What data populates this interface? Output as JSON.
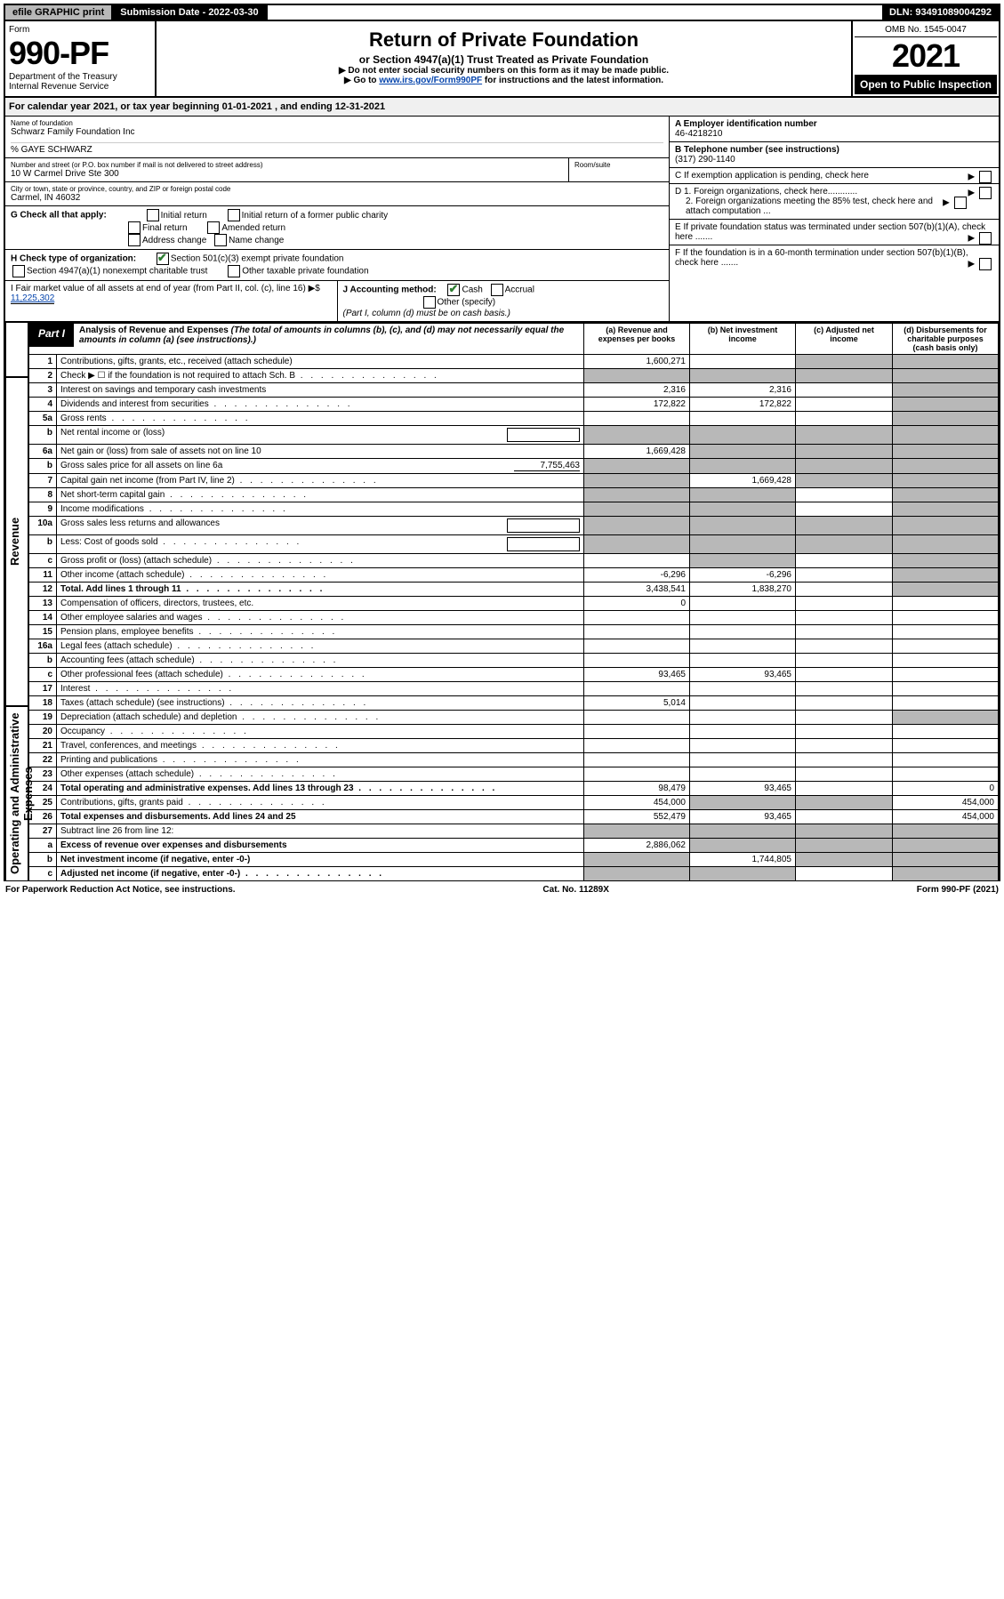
{
  "topbar": {
    "efile": "efile GRAPHIC print",
    "subdate": "Submission Date - 2022-03-30",
    "dln": "DLN: 93491089004292"
  },
  "header": {
    "form_label": "Form",
    "form_no": "990-PF",
    "dept": "Department of the Treasury",
    "irs": "Internal Revenue Service",
    "title": "Return of Private Foundation",
    "sub": "or Section 4947(a)(1) Trust Treated as Private Foundation",
    "note1": "▶ Do not enter social security numbers on this form as it may be made public.",
    "note2_pre": "▶ Go to ",
    "note2_link": "www.irs.gov/Form990PF",
    "note2_post": " for instructions and the latest information.",
    "omb": "OMB No. 1545-0047",
    "year": "2021",
    "open": "Open to Public Inspection"
  },
  "cal": "For calendar year 2021, or tax year beginning 01-01-2021              , and ending 12-31-2021",
  "info": {
    "name_label": "Name of foundation",
    "name": "Schwarz Family Foundation Inc",
    "care_of": "% GAYE SCHWARZ",
    "addr_label": "Number and street (or P.O. box number if mail is not delivered to street address)",
    "addr": "10 W Carmel Drive Ste 300",
    "room_label": "Room/suite",
    "city_label": "City or town, state or province, country, and ZIP or foreign postal code",
    "city": "Carmel, IN  46032",
    "a_label": "A Employer identification number",
    "a_val": "46-4218210",
    "b_label": "B Telephone number (see instructions)",
    "b_val": "(317) 290-1140",
    "c_label": "C If exemption application is pending, check here",
    "d1": "D 1. Foreign organizations, check here............",
    "d2": "2. Foreign organizations meeting the 85% test, check here and attach computation ...",
    "e": "E  If private foundation status was terminated under section 507(b)(1)(A), check here .......",
    "f": "F  If the foundation is in a 60-month termination under section 507(b)(1)(B), check here .......",
    "g_label": "G Check all that apply:",
    "g_opts": [
      "Initial return",
      "Initial return of a former public charity",
      "Final return",
      "Amended return",
      "Address change",
      "Name change"
    ],
    "h_label": "H Check type of organization:",
    "h_opts": [
      "Section 501(c)(3) exempt private foundation",
      "Section 4947(a)(1) nonexempt charitable trust",
      "Other taxable private foundation"
    ],
    "i_label": "I Fair market value of all assets at end of year (from Part II, col. (c), line 16) ▶$",
    "i_val": "11,225,302",
    "j_label": "J Accounting method:",
    "j_opts": [
      "Cash",
      "Accrual",
      "Other (specify)"
    ],
    "j_note": "(Part I, column (d) must be on cash basis.)"
  },
  "part1": {
    "tag": "Part I",
    "title": "Analysis of Revenue and Expenses",
    "title_note": "(The total of amounts in columns (b), (c), and (d) may not necessarily equal the amounts in column (a) (see instructions).)",
    "cols": {
      "a": "(a) Revenue and expenses per books",
      "b": "(b) Net investment income",
      "c": "(c) Adjusted net income",
      "d": "(d) Disbursements for charitable purposes (cash basis only)"
    },
    "side_revenue": "Revenue",
    "side_expenses": "Operating and Administrative Expenses",
    "rows": [
      {
        "n": "1",
        "desc": "Contributions, gifts, grants, etc., received (attach schedule)",
        "a": "1,600,271",
        "b": "",
        "c": "",
        "d": "",
        "shade_b": false,
        "shade_c": true,
        "shade_d": true
      },
      {
        "n": "2",
        "desc": "Check ▶ ☐ if the foundation is not required to attach Sch. B",
        "a": "",
        "b": "",
        "c": "",
        "d": "",
        "shade_a": true,
        "shade_b": true,
        "shade_c": true,
        "shade_d": true,
        "dot": true
      },
      {
        "n": "3",
        "desc": "Interest on savings and temporary cash investments",
        "a": "2,316",
        "b": "2,316",
        "c": "",
        "d": "",
        "shade_d": true
      },
      {
        "n": "4",
        "desc": "Dividends and interest from securities",
        "a": "172,822",
        "b": "172,822",
        "c": "",
        "d": "",
        "shade_d": true,
        "dot": true
      },
      {
        "n": "5a",
        "desc": "Gross rents",
        "a": "",
        "b": "",
        "c": "",
        "d": "",
        "shade_d": true,
        "dot": true
      },
      {
        "n": "b",
        "desc": "Net rental income or (loss)",
        "a": "",
        "b": "",
        "c": "",
        "d": "",
        "shade_a": true,
        "shade_b": true,
        "shade_c": true,
        "shade_d": true,
        "inline": true
      },
      {
        "n": "6a",
        "desc": "Net gain or (loss) from sale of assets not on line 10",
        "a": "1,669,428",
        "b": "",
        "c": "",
        "d": "",
        "shade_b": true,
        "shade_c": true,
        "shade_d": true
      },
      {
        "n": "b",
        "desc": "Gross sales price for all assets on line 6a",
        "inline_val": "7,755,463",
        "a": "",
        "b": "",
        "c": "",
        "d": "",
        "shade_a": true,
        "shade_b": true,
        "shade_c": true,
        "shade_d": true
      },
      {
        "n": "7",
        "desc": "Capital gain net income (from Part IV, line 2)",
        "a": "",
        "b": "1,669,428",
        "c": "",
        "d": "",
        "shade_a": true,
        "shade_c": true,
        "shade_d": true,
        "dot": true
      },
      {
        "n": "8",
        "desc": "Net short-term capital gain",
        "a": "",
        "b": "",
        "c": "",
        "d": "",
        "shade_a": true,
        "shade_b": true,
        "shade_d": true,
        "dot": true
      },
      {
        "n": "9",
        "desc": "Income modifications",
        "a": "",
        "b": "",
        "c": "",
        "d": "",
        "shade_a": true,
        "shade_b": true,
        "shade_d": true,
        "dot": true
      },
      {
        "n": "10a",
        "desc": "Gross sales less returns and allowances",
        "a": "",
        "b": "",
        "c": "",
        "d": "",
        "shade_a": true,
        "shade_b": true,
        "shade_c": true,
        "shade_d": true,
        "inline": true
      },
      {
        "n": "b",
        "desc": "Less: Cost of goods sold",
        "a": "",
        "b": "",
        "c": "",
        "d": "",
        "shade_a": true,
        "shade_b": true,
        "shade_c": true,
        "shade_d": true,
        "inline": true,
        "dot": true
      },
      {
        "n": "c",
        "desc": "Gross profit or (loss) (attach schedule)",
        "a": "",
        "b": "",
        "c": "",
        "d": "",
        "shade_b": true,
        "shade_d": true,
        "dot": true
      },
      {
        "n": "11",
        "desc": "Other income (attach schedule)",
        "a": "-6,296",
        "b": "-6,296",
        "c": "",
        "d": "",
        "shade_d": true,
        "dot": true
      },
      {
        "n": "12",
        "desc": "Total. Add lines 1 through 11",
        "a": "3,438,541",
        "b": "1,838,270",
        "c": "",
        "d": "",
        "bold": true,
        "shade_d": true,
        "dot": true
      },
      {
        "n": "13",
        "desc": "Compensation of officers, directors, trustees, etc.",
        "a": "0",
        "b": "",
        "c": "",
        "d": ""
      },
      {
        "n": "14",
        "desc": "Other employee salaries and wages",
        "a": "",
        "b": "",
        "c": "",
        "d": "",
        "dot": true
      },
      {
        "n": "15",
        "desc": "Pension plans, employee benefits",
        "a": "",
        "b": "",
        "c": "",
        "d": "",
        "dot": true
      },
      {
        "n": "16a",
        "desc": "Legal fees (attach schedule)",
        "a": "",
        "b": "",
        "c": "",
        "d": "",
        "dot": true
      },
      {
        "n": "b",
        "desc": "Accounting fees (attach schedule)",
        "a": "",
        "b": "",
        "c": "",
        "d": "",
        "dot": true
      },
      {
        "n": "c",
        "desc": "Other professional fees (attach schedule)",
        "a": "93,465",
        "b": "93,465",
        "c": "",
        "d": "",
        "dot": true
      },
      {
        "n": "17",
        "desc": "Interest",
        "a": "",
        "b": "",
        "c": "",
        "d": "",
        "dot": true
      },
      {
        "n": "18",
        "desc": "Taxes (attach schedule) (see instructions)",
        "a": "5,014",
        "b": "",
        "c": "",
        "d": "",
        "dot": true
      },
      {
        "n": "19",
        "desc": "Depreciation (attach schedule) and depletion",
        "a": "",
        "b": "",
        "c": "",
        "d": "",
        "shade_d": true,
        "dot": true
      },
      {
        "n": "20",
        "desc": "Occupancy",
        "a": "",
        "b": "",
        "c": "",
        "d": "",
        "dot": true
      },
      {
        "n": "21",
        "desc": "Travel, conferences, and meetings",
        "a": "",
        "b": "",
        "c": "",
        "d": "",
        "dot": true
      },
      {
        "n": "22",
        "desc": "Printing and publications",
        "a": "",
        "b": "",
        "c": "",
        "d": "",
        "dot": true
      },
      {
        "n": "23",
        "desc": "Other expenses (attach schedule)",
        "a": "",
        "b": "",
        "c": "",
        "d": "",
        "dot": true
      },
      {
        "n": "24",
        "desc": "Total operating and administrative expenses. Add lines 13 through 23",
        "a": "98,479",
        "b": "93,465",
        "c": "",
        "d": "0",
        "bold": true,
        "dot": true
      },
      {
        "n": "25",
        "desc": "Contributions, gifts, grants paid",
        "a": "454,000",
        "b": "",
        "c": "",
        "d": "454,000",
        "shade_b": true,
        "shade_c": true,
        "dot": true
      },
      {
        "n": "26",
        "desc": "Total expenses and disbursements. Add lines 24 and 25",
        "a": "552,479",
        "b": "93,465",
        "c": "",
        "d": "454,000",
        "bold": true
      },
      {
        "n": "27",
        "desc": "Subtract line 26 from line 12:",
        "a": "",
        "b": "",
        "c": "",
        "d": "",
        "shade_a": true,
        "shade_b": true,
        "shade_c": true,
        "shade_d": true
      },
      {
        "n": "a",
        "desc": "Excess of revenue over expenses and disbursements",
        "a": "2,886,062",
        "b": "",
        "c": "",
        "d": "",
        "bold": true,
        "shade_b": true,
        "shade_c": true,
        "shade_d": true
      },
      {
        "n": "b",
        "desc": "Net investment income (if negative, enter -0-)",
        "a": "",
        "b": "1,744,805",
        "c": "",
        "d": "",
        "bold": true,
        "shade_a": true,
        "shade_c": true,
        "shade_d": true
      },
      {
        "n": "c",
        "desc": "Adjusted net income (if negative, enter -0-)",
        "a": "",
        "b": "",
        "c": "",
        "d": "",
        "bold": true,
        "shade_a": true,
        "shade_b": true,
        "shade_d": true,
        "dot": true
      }
    ]
  },
  "footer": {
    "left": "For Paperwork Reduction Act Notice, see instructions.",
    "mid": "Cat. No. 11289X",
    "right": "Form 990-PF (2021)"
  }
}
